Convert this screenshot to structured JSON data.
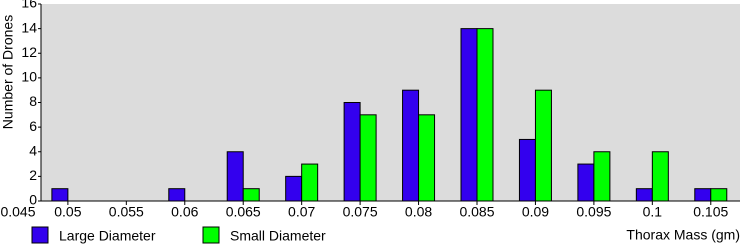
{
  "chart_data": {
    "type": "bar",
    "x": [
      0.05,
      0.055,
      0.06,
      0.065,
      0.07,
      0.075,
      0.08,
      0.085,
      0.09,
      0.095,
      0.1,
      0.105
    ],
    "series": [
      {
        "name": "Large Diameter",
        "color": "#3300ee",
        "values": [
          1,
          0,
          1,
          4,
          2,
          8,
          9,
          14,
          5,
          3,
          1,
          1
        ]
      },
      {
        "name": "Small Diameter",
        "color": "#00ff00",
        "values": [
          0,
          0,
          0,
          1,
          3,
          7,
          7,
          14,
          9,
          4,
          4,
          1
        ]
      }
    ],
    "xlabel": "Thorax Mass (gm)",
    "ylabel": "Number of Drones",
    "xlim": [
      0.0477,
      0.1075
    ],
    "xticks": [
      0.045,
      0.05,
      0.055,
      0.06,
      0.065,
      0.07,
      0.075,
      0.08,
      0.085,
      0.09,
      0.095,
      0.1,
      0.105
    ],
    "ylim": [
      0,
      16
    ],
    "yticks": [
      0,
      2,
      4,
      6,
      8,
      10,
      12,
      14,
      16
    ],
    "plot_background": "#dcdcdc"
  }
}
